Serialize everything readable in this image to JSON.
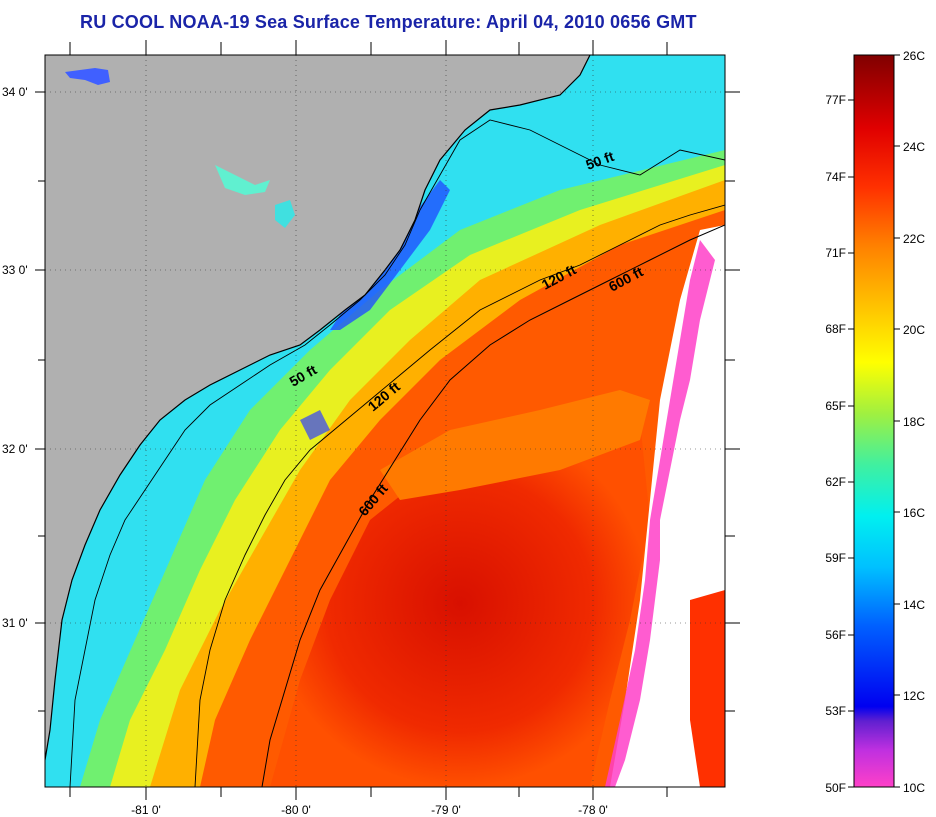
{
  "title": "RU COOL  NOAA-19  Sea Surface Temperature:  April 04, 2010 0656 GMT",
  "map": {
    "lat_range": [
      30.2,
      34.2
    ],
    "lon_range": [
      -81.7,
      -77.1
    ],
    "lat_ticks": [
      {
        "label": "34 0'"
      },
      {
        "label": "33 0'"
      },
      {
        "label": "32 0'"
      },
      {
        "label": "31 0'"
      }
    ],
    "lon_ticks": [
      {
        "label": "-81 0'"
      },
      {
        "label": "-80 0'"
      },
      {
        "label": "-79 0'"
      },
      {
        "label": "-78 0'"
      }
    ],
    "gridlines": "dotted",
    "land_color": "#b0b0b0",
    "cloud_color": "#ffffff",
    "isobath_labels": [
      {
        "text": "50 ft"
      },
      {
        "text": "120 ft"
      },
      {
        "text": "600 ft"
      },
      {
        "text": "50 ft"
      },
      {
        "text": "120 ft"
      },
      {
        "text": "600 ft"
      }
    ]
  },
  "colorbar": {
    "celsius_labels": [
      "26C",
      "24C",
      "22C",
      "20C",
      "18C",
      "16C",
      "14C",
      "12C",
      "10C"
    ],
    "fahrenheit_labels": [
      "77F",
      "74F",
      "71F",
      "68F",
      "65F",
      "62F",
      "59F",
      "56F",
      "53F",
      "50F"
    ],
    "colors": [
      "#ff40c8",
      "#9020d0",
      "#0000ff",
      "#0080ff",
      "#00e0ff",
      "#40ff90",
      "#c0ff00",
      "#ffff00",
      "#ffa000",
      "#ff3000",
      "#d00000",
      "#800000"
    ]
  }
}
